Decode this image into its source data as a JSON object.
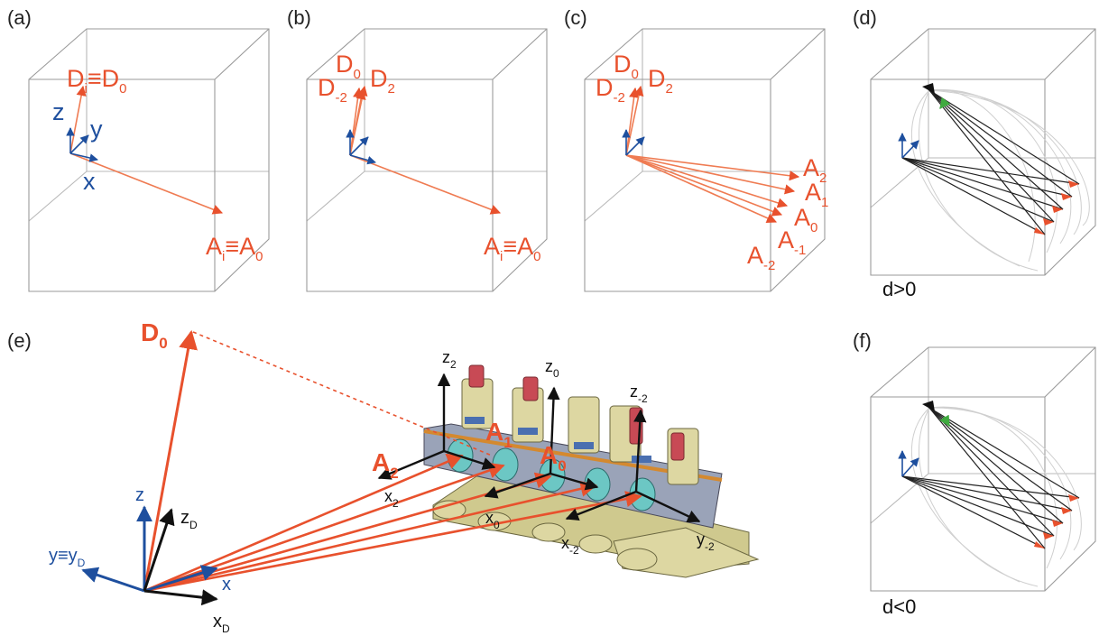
{
  "panels": {
    "a": {
      "label": "(a)",
      "d": "D",
      "d_sub": "i",
      "d_eq": "≡D",
      "d_sub0": "0",
      "z": "z",
      "y": "y",
      "x": "x",
      "a": "A",
      "a_sub": "i",
      "a_eq": "≡A",
      "a_sub0": "0"
    },
    "b": {
      "label": "(b)",
      "d0": "D",
      "d0_sub": "0",
      "d2": "D",
      "d2_sub": "2",
      "dm2": "D",
      "dm2_sub": "-2",
      "a": "A",
      "a_sub": "i",
      "a_eq": "≡A",
      "a_sub0": "0"
    },
    "c": {
      "label": "(c)",
      "d0": "D",
      "d0_sub": "0",
      "d2": "D",
      "d2_sub": "2",
      "dm2": "D",
      "dm2_sub": "-2",
      "a2": "A",
      "a2_sub": "2",
      "a1": "A",
      "a1_sub": "1",
      "a0": "A",
      "a0_sub": "0",
      "am1": "A",
      "am1_sub": "-1",
      "am2": "A",
      "am2_sub": "-2"
    },
    "d": {
      "label": "(d)",
      "caption": "d>0"
    },
    "e": {
      "label": "(e)",
      "D0": "D",
      "D0_sub": "0",
      "A2": "A",
      "A2_sub": "2",
      "A1": "A",
      "A1_sub": "1",
      "A0": "A",
      "A0_sub": "0",
      "z": "z",
      "zD": "z",
      "zD_sub": "D",
      "y": "y≡y",
      "y_sub": "D",
      "x": "x",
      "xD": "x",
      "xD_sub": "D",
      "z2": "z",
      "z2_sub": "2",
      "z0": "z",
      "z0_sub": "0",
      "zm2": "z",
      "zm2_sub": "-2",
      "x2": "x",
      "x2_sub": "2",
      "x0": "x",
      "x0_sub": "0",
      "xm2": "x",
      "xm2_sub": "-2",
      "ym2": "y",
      "ym2_sub": "-2"
    },
    "f": {
      "label": "(f)",
      "caption": "d<0"
    }
  },
  "colors": {
    "orange": "#e8512d",
    "orange_light": "#ef7b52",
    "blue": "#1e4f9e",
    "black": "#111111",
    "box": "#9a9a9a",
    "green": "#3faa3f",
    "machine": "#d8d29c",
    "post": "#c84a55",
    "mirror": "#6cc7c4"
  }
}
